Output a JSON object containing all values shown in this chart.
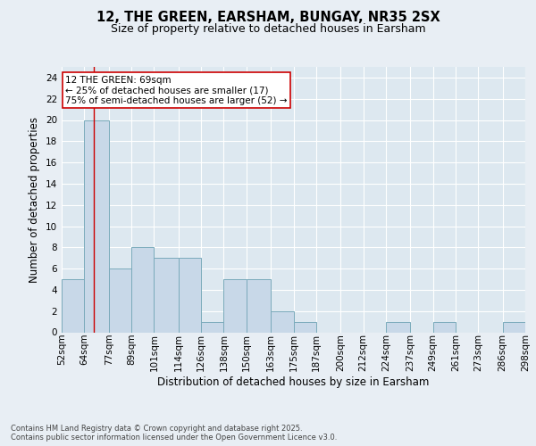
{
  "title1": "12, THE GREEN, EARSHAM, BUNGAY, NR35 2SX",
  "title2": "Size of property relative to detached houses in Earsham",
  "xlabel": "Distribution of detached houses by size in Earsham",
  "ylabel": "Number of detached properties",
  "bin_labels": [
    "52sqm",
    "64sqm",
    "77sqm",
    "89sqm",
    "101sqm",
    "114sqm",
    "126sqm",
    "138sqm",
    "150sqm",
    "163sqm",
    "175sqm",
    "187sqm",
    "200sqm",
    "212sqm",
    "224sqm",
    "237sqm",
    "249sqm",
    "261sqm",
    "273sqm",
    "286sqm",
    "298sqm"
  ],
  "bin_edges": [
    52,
    64,
    77,
    89,
    101,
    114,
    126,
    138,
    150,
    163,
    175,
    187,
    200,
    212,
    224,
    237,
    249,
    261,
    273,
    286,
    298
  ],
  "bar_heights": [
    5,
    20,
    6,
    8,
    7,
    7,
    1,
    5,
    5,
    2,
    1,
    0,
    0,
    0,
    1,
    0,
    1,
    0,
    0,
    1,
    0
  ],
  "bar_color": "#c8d8e8",
  "bar_edge_color": "#7aaabb",
  "vline_x": 69,
  "vline_color": "#cc0000",
  "ylim": [
    0,
    25
  ],
  "yticks": [
    0,
    2,
    4,
    6,
    8,
    10,
    12,
    14,
    16,
    18,
    20,
    22,
    24
  ],
  "annotation_text": "12 THE GREEN: 69sqm\n← 25% of detached houses are smaller (17)\n75% of semi-detached houses are larger (52) →",
  "annotation_box_color": "#ffffff",
  "annotation_box_edge_color": "#cc0000",
  "footer_text": "Contains HM Land Registry data © Crown copyright and database right 2025.\nContains public sector information licensed under the Open Government Licence v3.0.",
  "bg_color": "#e8eef4",
  "plot_bg_color": "#dde8f0",
  "title_fontsize": 10.5,
  "subtitle_fontsize": 9,
  "ylabel_fontsize": 8.5,
  "xlabel_fontsize": 8.5,
  "tick_fontsize": 7.5,
  "annot_fontsize": 7.5,
  "footer_fontsize": 6
}
